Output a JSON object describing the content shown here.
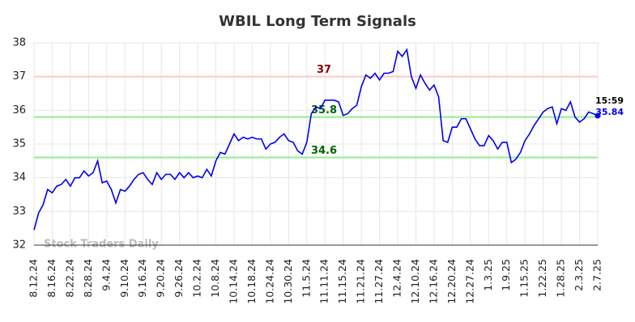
{
  "chart_data": {
    "type": "line",
    "title": "WBIL Long Term Signals",
    "watermark": "Stock Traders Daily",
    "last_time": "15:59",
    "color": "#0000ee",
    "grid": true,
    "ylim": [
      32,
      38
    ],
    "yticks": [
      32,
      33,
      34,
      35,
      36,
      37,
      38
    ],
    "reference_lines": [
      {
        "value": 37,
        "color": "#ffc8c8",
        "label_color": "#8b0000"
      },
      {
        "value": 35.8,
        "color": "#90ee90",
        "label_color": "#006400"
      },
      {
        "value": 34.6,
        "color": "#90ee90",
        "label_color": "#006400"
      }
    ],
    "categories": [
      "8.12.24",
      null,
      null,
      null,
      "8.16.24",
      null,
      null,
      null,
      "8.22.24",
      null,
      null,
      null,
      "8.28.24",
      null,
      null,
      null,
      "9.4.24",
      null,
      null,
      null,
      "9.10.24",
      null,
      null,
      null,
      "9.16.24",
      null,
      null,
      null,
      "9.20.24",
      null,
      null,
      null,
      "9.26.24",
      null,
      null,
      null,
      "10.2.24",
      null,
      null,
      null,
      "10.8.24",
      null,
      null,
      null,
      "10.14.24",
      null,
      null,
      null,
      "10.18.24",
      null,
      null,
      null,
      "10.24.24",
      null,
      null,
      null,
      "10.30.24",
      null,
      null,
      null,
      "11.5.24",
      null,
      null,
      null,
      "11.11.24",
      null,
      null,
      null,
      "11.15.24",
      null,
      null,
      null,
      "11.21.24",
      null,
      null,
      null,
      "11.27.24",
      null,
      null,
      null,
      "12.4.24",
      null,
      null,
      null,
      "12.10.24",
      null,
      null,
      null,
      "12.16.24",
      null,
      null,
      null,
      "12.20.24",
      null,
      null,
      null,
      "12.27.24",
      null,
      null,
      null,
      "1.3.25",
      null,
      null,
      null,
      "1.9.25",
      null,
      null,
      null,
      "1.15.25",
      null,
      null,
      null,
      "1.22.25",
      null,
      null,
      null,
      "1.28.25",
      null,
      null,
      null,
      "2.3.25",
      null,
      null,
      null,
      "2.7.25"
    ],
    "values": [
      32.45,
      32.95,
      33.2,
      33.65,
      33.55,
      33.75,
      33.8,
      33.95,
      33.75,
      34.0,
      34.0,
      34.2,
      34.05,
      34.15,
      34.5,
      33.85,
      33.9,
      33.65,
      33.25,
      33.65,
      33.6,
      33.75,
      33.95,
      34.1,
      34.15,
      33.95,
      33.8,
      34.15,
      33.95,
      34.1,
      34.1,
      33.95,
      34.15,
      34.0,
      34.15,
      34.0,
      34.05,
      34.0,
      34.25,
      34.05,
      34.5,
      34.75,
      34.7,
      35.0,
      35.3,
      35.1,
      35.2,
      35.15,
      35.2,
      35.15,
      35.15,
      34.85,
      35.0,
      35.05,
      35.2,
      35.3,
      35.1,
      35.05,
      34.8,
      34.7,
      35.05,
      35.9,
      36.1,
      36.05,
      36.3,
      36.3,
      36.3,
      36.25,
      35.85,
      35.9,
      36.05,
      36.15,
      36.7,
      37.05,
      36.95,
      37.1,
      36.9,
      37.1,
      37.1,
      37.15,
      37.75,
      37.6,
      37.8,
      37.0,
      36.65,
      37.05,
      36.8,
      36.6,
      36.75,
      36.4,
      35.1,
      35.05,
      35.5,
      35.5,
      35.75,
      35.75,
      35.45,
      35.15,
      34.95,
      34.95,
      35.25,
      35.1,
      34.85,
      35.05,
      35.05,
      34.45,
      34.55,
      34.75,
      35.1,
      35.3,
      35.55,
      35.75,
      35.95,
      36.05,
      36.1,
      35.6,
      36.05,
      36.0,
      36.25,
      35.8,
      35.65,
      35.75,
      35.95,
      35.9,
      35.84
    ]
  }
}
